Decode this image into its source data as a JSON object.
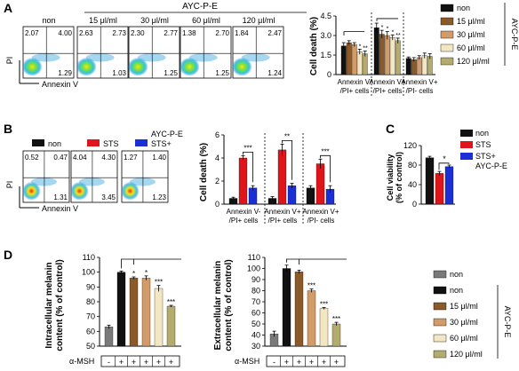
{
  "panel_labels": [
    "A",
    "B",
    "C",
    "D"
  ],
  "panelA": {
    "treatment": "AYC-P-E",
    "flow_labels": [
      "non",
      "15 μl/ml",
      "30 μl/ml",
      "60 μl/ml",
      "120 μl/ml"
    ],
    "quadrants": [
      [
        "2.07",
        "4.00",
        "1.29"
      ],
      [
        "2.63",
        "2.73",
        "1.03"
      ],
      [
        "2.30",
        "2.77",
        "1.25"
      ],
      [
        "1.38",
        "2.70",
        "1.25"
      ],
      [
        "1.84",
        "2.47",
        "1.24"
      ]
    ],
    "x_axis": "Annexin V",
    "y_axis": "PI"
  },
  "panelB": {
    "legend": [
      "non",
      "STS",
      "STS+ AYC-P-E"
    ],
    "legend_line1": [
      "non",
      "STS",
      "STS+"
    ],
    "legend_line2": [
      "",
      "",
      "AYC-P-E"
    ],
    "quadrants": [
      [
        "0.52",
        "0.47",
        "1.31"
      ],
      [
        "4.04",
        "4.30",
        "3.45"
      ],
      [
        "1.27",
        "1.40",
        "1.23"
      ]
    ],
    "x_axis": "Annexin V",
    "y_axis": "PI"
  },
  "legendA": [
    "non",
    "15 μl/ml",
    "30 μl/ml",
    "60 μl/ml",
    "120 μl/ml"
  ],
  "legendA_side": "AYC-P-E",
  "legendC": [
    "non",
    "STS",
    "STS+ AYC-P-E"
  ],
  "legendC_line1": [
    "non",
    "STS",
    "STS+"
  ],
  "legendC_line2": [
    "",
    "",
    "AYC-P-E"
  ],
  "legendD": [
    "non",
    "non",
    "15 μl/ml",
    "30 μl/ml",
    "60 μl/ml",
    "120 μl/ml"
  ],
  "legendD_side": "AYC-P-E",
  "chart_data": [
    {
      "id": "A-celldeath",
      "type": "bar",
      "ylabel": "Cell death (%)",
      "ylim": [
        0,
        4.5
      ],
      "yticks": [
        "0",
        "1.5",
        "3.0",
        "4.5"
      ],
      "yticks_values": [
        0,
        1.5,
        3.0,
        4.5
      ],
      "groups": [
        "Annexin V-/PI+ cells",
        "Annexin V+/PI+ cells",
        "Annexin V+/PI- cells"
      ],
      "group_line1": [
        "Annexin V-",
        "Annexin V+",
        "Annexin V+"
      ],
      "group_line2": [
        "/PI+ cells",
        "/PI+ cells",
        "/PI- cells"
      ],
      "series": [
        {
          "name": "non",
          "values": [
            2.2,
            3.6,
            1.25
          ]
        },
        {
          "name": "15 μl/ml",
          "values": [
            2.45,
            3.1,
            1.15
          ]
        },
        {
          "name": "30 μl/ml",
          "values": [
            2.3,
            3.0,
            1.3
          ]
        },
        {
          "name": "60 μl/ml",
          "values": [
            1.75,
            2.85,
            1.45
          ]
        },
        {
          "name": "120 μl/ml",
          "values": [
            1.6,
            2.6,
            1.4
          ]
        }
      ],
      "errors": [
        [
          0.25,
          0.15,
          0.15,
          0.2,
          0.2
        ],
        [
          0.35,
          0.3,
          0.3,
          0.2,
          0.2
        ],
        [
          0.1,
          0.15,
          0.15,
          0.2,
          0.2
        ]
      ],
      "stars": [
        [
          "",
          "",
          "",
          "*",
          "**"
        ],
        [
          "",
          "*",
          "*",
          "*",
          "**"
        ],
        [
          "",
          "",
          "",
          "",
          ""
        ]
      ]
    },
    {
      "id": "B-celldeath",
      "type": "bar",
      "ylabel": "Cell death (%)",
      "ylim": [
        0,
        6
      ],
      "yticks": [
        "0",
        "2",
        "4",
        "6"
      ],
      "yticks_values": [
        0,
        2,
        4,
        6
      ],
      "groups": [
        "Annexin V-/PI+ cells",
        "Annexin V+/PI+ cells",
        "Annexin V+/PI- cells"
      ],
      "group_line1": [
        "Annexin V-",
        "Annexin V+",
        "Annexin V+"
      ],
      "group_line2": [
        "/PI+ cells",
        "/PI+ cells",
        "/PI- cells"
      ],
      "series": [
        {
          "name": "non",
          "values": [
            0.5,
            0.5,
            1.4
          ]
        },
        {
          "name": "STS",
          "values": [
            4.0,
            4.7,
            3.5
          ]
        },
        {
          "name": "STS+ AYC-P-E",
          "values": [
            1.4,
            1.6,
            1.3
          ]
        }
      ],
      "errors": [
        [
          0.1,
          0.2,
          0.2
        ],
        [
          0.15,
          0.5,
          0.2
        ],
        [
          0.2,
          0.4,
          0.3
        ]
      ],
      "sig": [
        "***",
        "**",
        "***"
      ]
    },
    {
      "id": "C-viability",
      "type": "bar",
      "ylabel_line1": "Cell viability",
      "ylabel_line2": "(% of control)",
      "ylim": [
        0,
        120
      ],
      "yticks": [
        "0",
        "40",
        "80",
        "120"
      ],
      "yticks_values": [
        0,
        40,
        80,
        120
      ],
      "categories": [
        "non",
        "STS",
        "STS+ AYC-P-E"
      ],
      "values": [
        95,
        63,
        77
      ],
      "errors": [
        3,
        4,
        3
      ],
      "sig": "*"
    },
    {
      "id": "D-intracellular",
      "type": "bar",
      "ylabel_line1": "Intracellular melanin",
      "ylabel_line2": "content (% of control)",
      "ylim": [
        50,
        110
      ],
      "yticks": [
        "50",
        "60",
        "70",
        "80",
        "90",
        "100",
        "110"
      ],
      "yticks_values": [
        50,
        60,
        70,
        80,
        90,
        100,
        110
      ],
      "categories": [
        "non",
        "non",
        "15 μl/ml",
        "30 μl/ml",
        "60 μl/ml",
        "120 μl/ml"
      ],
      "values": [
        63,
        100,
        96,
        96,
        89,
        77
      ],
      "errors": [
        1.2,
        0.8,
        0.8,
        1.5,
        2.0,
        0.6
      ],
      "stars": [
        "",
        "",
        "*",
        "*",
        "***",
        "***"
      ],
      "msh_label": "α-MSH",
      "msh": [
        "-",
        "+",
        "+",
        "+",
        "+",
        "+"
      ]
    },
    {
      "id": "D-extracellular",
      "type": "bar",
      "ylabel_line1": "Extracellular melanin",
      "ylabel_line2": "content (% of control)",
      "ylim": [
        30,
        110
      ],
      "yticks": [
        "30",
        "40",
        "50",
        "60",
        "70",
        "80",
        "90",
        "100",
        "110"
      ],
      "yticks_values": [
        30,
        40,
        50,
        60,
        70,
        80,
        90,
        100,
        110
      ],
      "categories": [
        "non",
        "non",
        "15 μl/ml",
        "30 μl/ml",
        "60 μl/ml",
        "120 μl/ml"
      ],
      "values": [
        41,
        100,
        97,
        80,
        64,
        50
      ],
      "errors": [
        2.5,
        3.0,
        1.5,
        1.5,
        0.8,
        1.5
      ],
      "stars": [
        "",
        "",
        "",
        "***",
        "***",
        "***"
      ],
      "msh_label": "α-MSH",
      "msh": [
        "-",
        "+",
        "+",
        "+",
        "+",
        "+"
      ]
    }
  ],
  "colors": {
    "gray": "#7a7a7a",
    "black": "#111111",
    "brown": "#8b5a2b",
    "tan": "#d29b6a",
    "cream": "#f3e6c2",
    "olive": "#b4ac6e",
    "red": "#e0141b",
    "blue": "#1a2fd6"
  }
}
